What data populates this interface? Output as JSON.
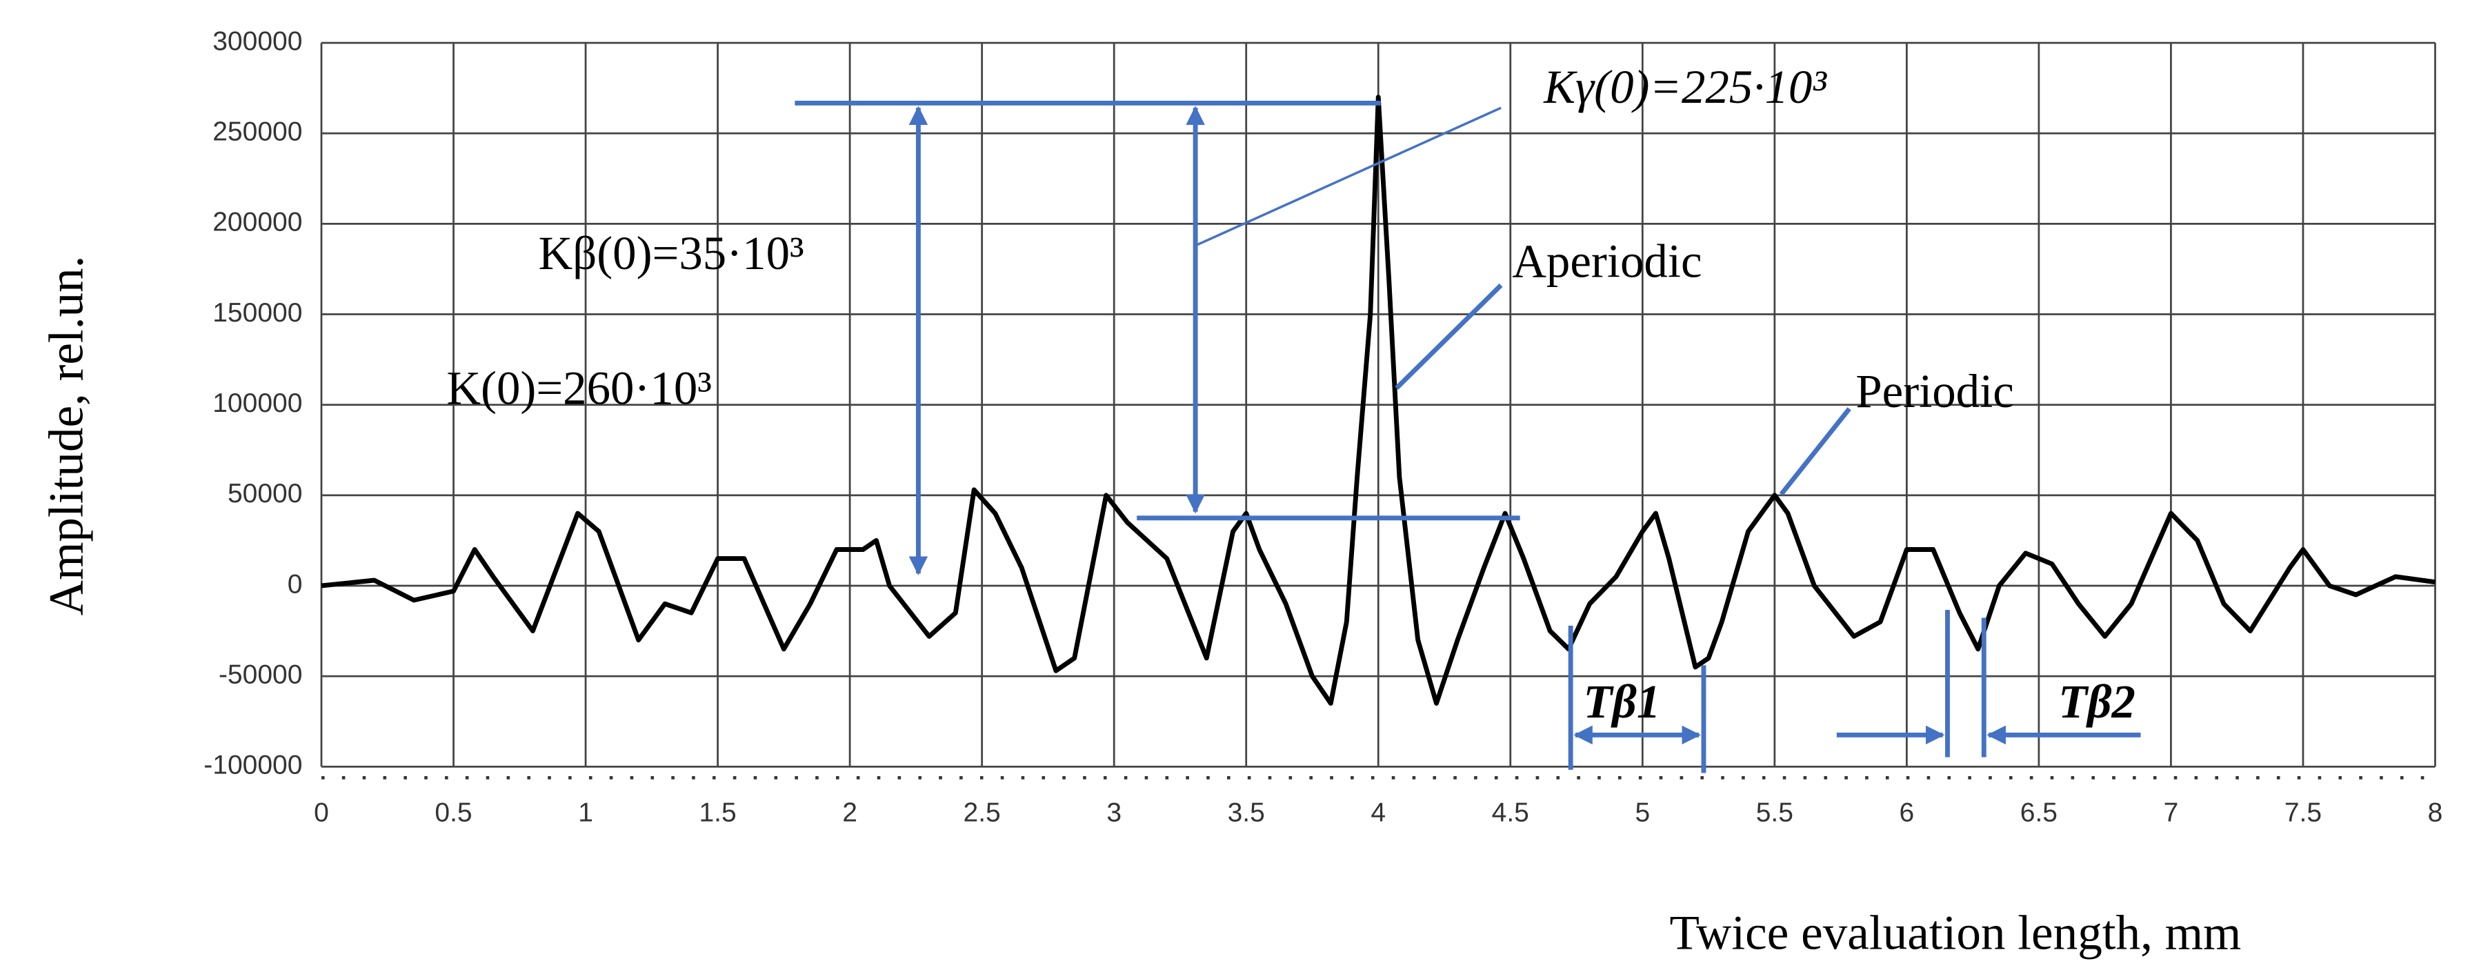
{
  "chart_data": {
    "type": "line",
    "x_label": "Twice evaluation length, mm",
    "y_label": "Amplitude, rel.un.",
    "color": "#000000",
    "xlim": [
      0,
      8
    ],
    "ylim": [
      -100000,
      300000
    ],
    "xticks": [
      0,
      0.5,
      1,
      1.5,
      2,
      2.5,
      3,
      3.5,
      4,
      4.5,
      5,
      5.5,
      6,
      6.5,
      7,
      7.5,
      8
    ],
    "yticks": [
      -100000,
      -50000,
      0,
      50000,
      100000,
      150000,
      200000,
      250000,
      300000
    ],
    "grid": true,
    "x": [
      0,
      0.2,
      0.35,
      0.5,
      0.58,
      0.65,
      0.8,
      0.97,
      1.05,
      1.2,
      1.3,
      1.4,
      1.5,
      1.6,
      1.75,
      1.85,
      1.95,
      2.05,
      2.1,
      2.15,
      2.3,
      2.4,
      2.47,
      2.55,
      2.65,
      2.78,
      2.85,
      2.97,
      3.05,
      3.2,
      3.35,
      3.45,
      3.5,
      3.55,
      3.65,
      3.75,
      3.82,
      3.88,
      3.92,
      3.97,
      4.0,
      4.04,
      4.08,
      4.15,
      4.22,
      4.3,
      4.4,
      4.48,
      4.55,
      4.65,
      4.72,
      4.8,
      4.9,
      5.0,
      5.05,
      5.1,
      5.2,
      5.25,
      5.3,
      5.4,
      5.5,
      5.55,
      5.65,
      5.8,
      5.9,
      6.0,
      6.1,
      6.2,
      6.27,
      6.35,
      6.45,
      6.55,
      6.65,
      6.75,
      6.85,
      7.0,
      7.1,
      7.2,
      7.3,
      7.45,
      7.5,
      7.6,
      7.7,
      7.85,
      8.0
    ],
    "values": [
      0,
      3000,
      -8000,
      -3000,
      20000,
      5000,
      -25000,
      40000,
      30000,
      -30000,
      -10000,
      -15000,
      15000,
      15000,
      -35000,
      -10000,
      20000,
      20000,
      25000,
      0,
      -28000,
      -15000,
      53000,
      40000,
      10000,
      -47000,
      -40000,
      50000,
      35000,
      15000,
      -40000,
      30000,
      40000,
      20000,
      -10000,
      -50000,
      -65000,
      -20000,
      60000,
      150000,
      270000,
      170000,
      60000,
      -30000,
      -65000,
      -30000,
      10000,
      40000,
      15000,
      -25000,
      -35000,
      -10000,
      5000,
      30000,
      40000,
      15000,
      -45000,
      -40000,
      -20000,
      30000,
      50000,
      40000,
      0,
      -28000,
      -20000,
      20000,
      20000,
      -15000,
      -35000,
      0,
      18000,
      12000,
      -10000,
      -28000,
      -10000,
      40000,
      25000,
      -10000,
      -25000,
      10000,
      20000,
      0,
      -5000,
      5000,
      2000
    ],
    "annotations": [
      "Kγ(0)=225·10³",
      "Kβ(0)=35·10³",
      "Aperiodic",
      "K(0)=260·10³",
      "Periodic",
      "Tβ1",
      "Tβ2"
    ]
  }
}
